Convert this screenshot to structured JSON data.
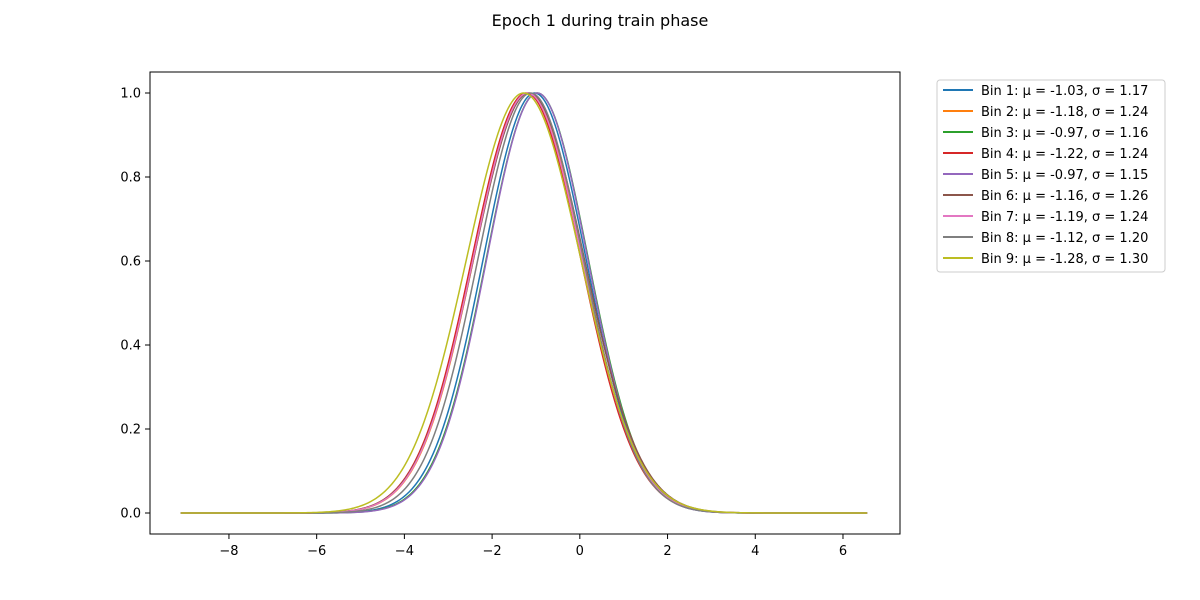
{
  "chart_data": {
    "type": "line",
    "title": "Epoch 1 during train phase",
    "xlabel": "",
    "ylabel": "",
    "xlim": [
      -9.8,
      7.3
    ],
    "ylim": [
      -0.05,
      1.05
    ],
    "x_range": [
      -9.1,
      6.55
    ],
    "x_ticks": [
      -8,
      -6,
      -4,
      -2,
      0,
      2,
      4,
      6
    ],
    "x_tick_labels": [
      "−8",
      "−6",
      "−4",
      "−2",
      "0",
      "2",
      "4",
      "6"
    ],
    "y_ticks": [
      0.0,
      0.2,
      0.4,
      0.6,
      0.8,
      1.0
    ],
    "y_tick_labels": [
      "0.0",
      "0.2",
      "0.4",
      "0.6",
      "0.8",
      "1.0"
    ],
    "grid": false,
    "legend_position": "outside-top-right",
    "series": [
      {
        "name": "Bin 1: μ = -1.03, σ = 1.17",
        "mu": -1.03,
        "sigma": 1.17,
        "color": "#1f77b4"
      },
      {
        "name": "Bin 2: μ = -1.18, σ = 1.24",
        "mu": -1.18,
        "sigma": 1.24,
        "color": "#ff7f0e"
      },
      {
        "name": "Bin 3: μ = -0.97, σ = 1.16",
        "mu": -0.97,
        "sigma": 1.16,
        "color": "#2ca02c"
      },
      {
        "name": "Bin 4: μ = -1.22, σ = 1.24",
        "mu": -1.22,
        "sigma": 1.24,
        "color": "#d62728"
      },
      {
        "name": "Bin 5: μ = -0.97, σ = 1.15",
        "mu": -0.97,
        "sigma": 1.15,
        "color": "#9467bd"
      },
      {
        "name": "Bin 6: μ = -1.16, σ = 1.26",
        "mu": -1.16,
        "sigma": 1.26,
        "color": "#8c564b"
      },
      {
        "name": "Bin 7: μ = -1.19, σ = 1.24",
        "mu": -1.19,
        "sigma": 1.24,
        "color": "#e377c2"
      },
      {
        "name": "Bin 8: μ = -1.12, σ = 1.20",
        "mu": -1.12,
        "sigma": 1.2,
        "color": "#7f7f7f"
      },
      {
        "name": "Bin 9: μ = -1.28, σ = 1.30",
        "mu": -1.28,
        "sigma": 1.3,
        "color": "#bcbd22"
      }
    ]
  }
}
